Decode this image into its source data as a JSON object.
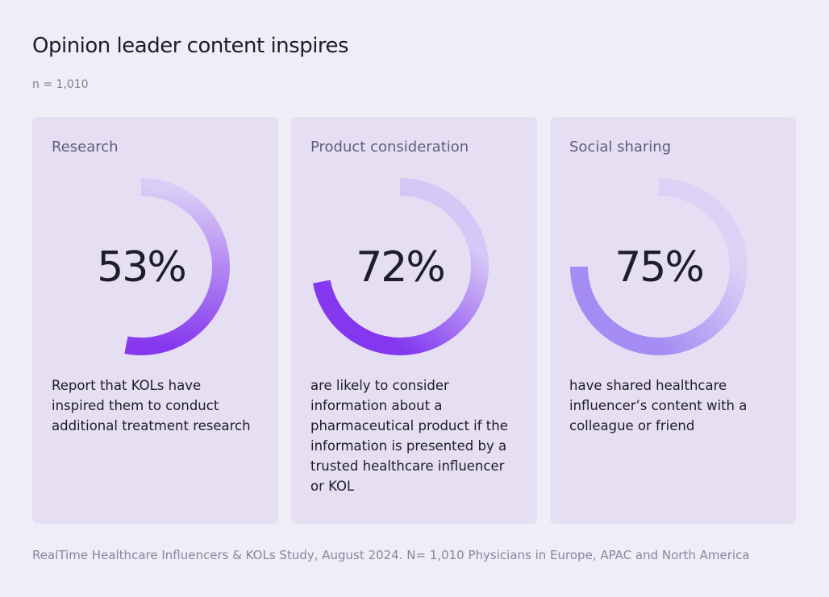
{
  "title": "Opinion leader content inspires",
  "subtitle": "n = 1,010",
  "chart_data": [
    {
      "type": "progress-ring",
      "title": "Research",
      "values": [
        53
      ],
      "value_labels": [
        "53%"
      ],
      "colors": [
        "#d9ccf6",
        "#8536ee"
      ],
      "description": "Report that KOLs have inspired them to conduct additional treatment research"
    },
    {
      "type": "progress-ring",
      "title": "Product consideration",
      "values": [
        72
      ],
      "value_labels": [
        "72%"
      ],
      "colors": [
        "#d6c8f6",
        "#8338f0"
      ],
      "description": "are likely to consider information about a pharmaceutical product if the information is presented by a trusted healthcare influencer or KOL"
    },
    {
      "type": "progress-ring",
      "title": "Social sharing",
      "values": [
        75
      ],
      "value_labels": [
        "75%"
      ],
      "colors": [
        "#dcd2f5",
        "#a58cf4"
      ],
      "description": "have shared healthcare influencer’s content with a colleague or friend"
    }
  ],
  "source": "RealTime Healthcare Influencers & KOLs Study, August 2024. N= 1,010 Physicians in Europe, APAC and North America"
}
